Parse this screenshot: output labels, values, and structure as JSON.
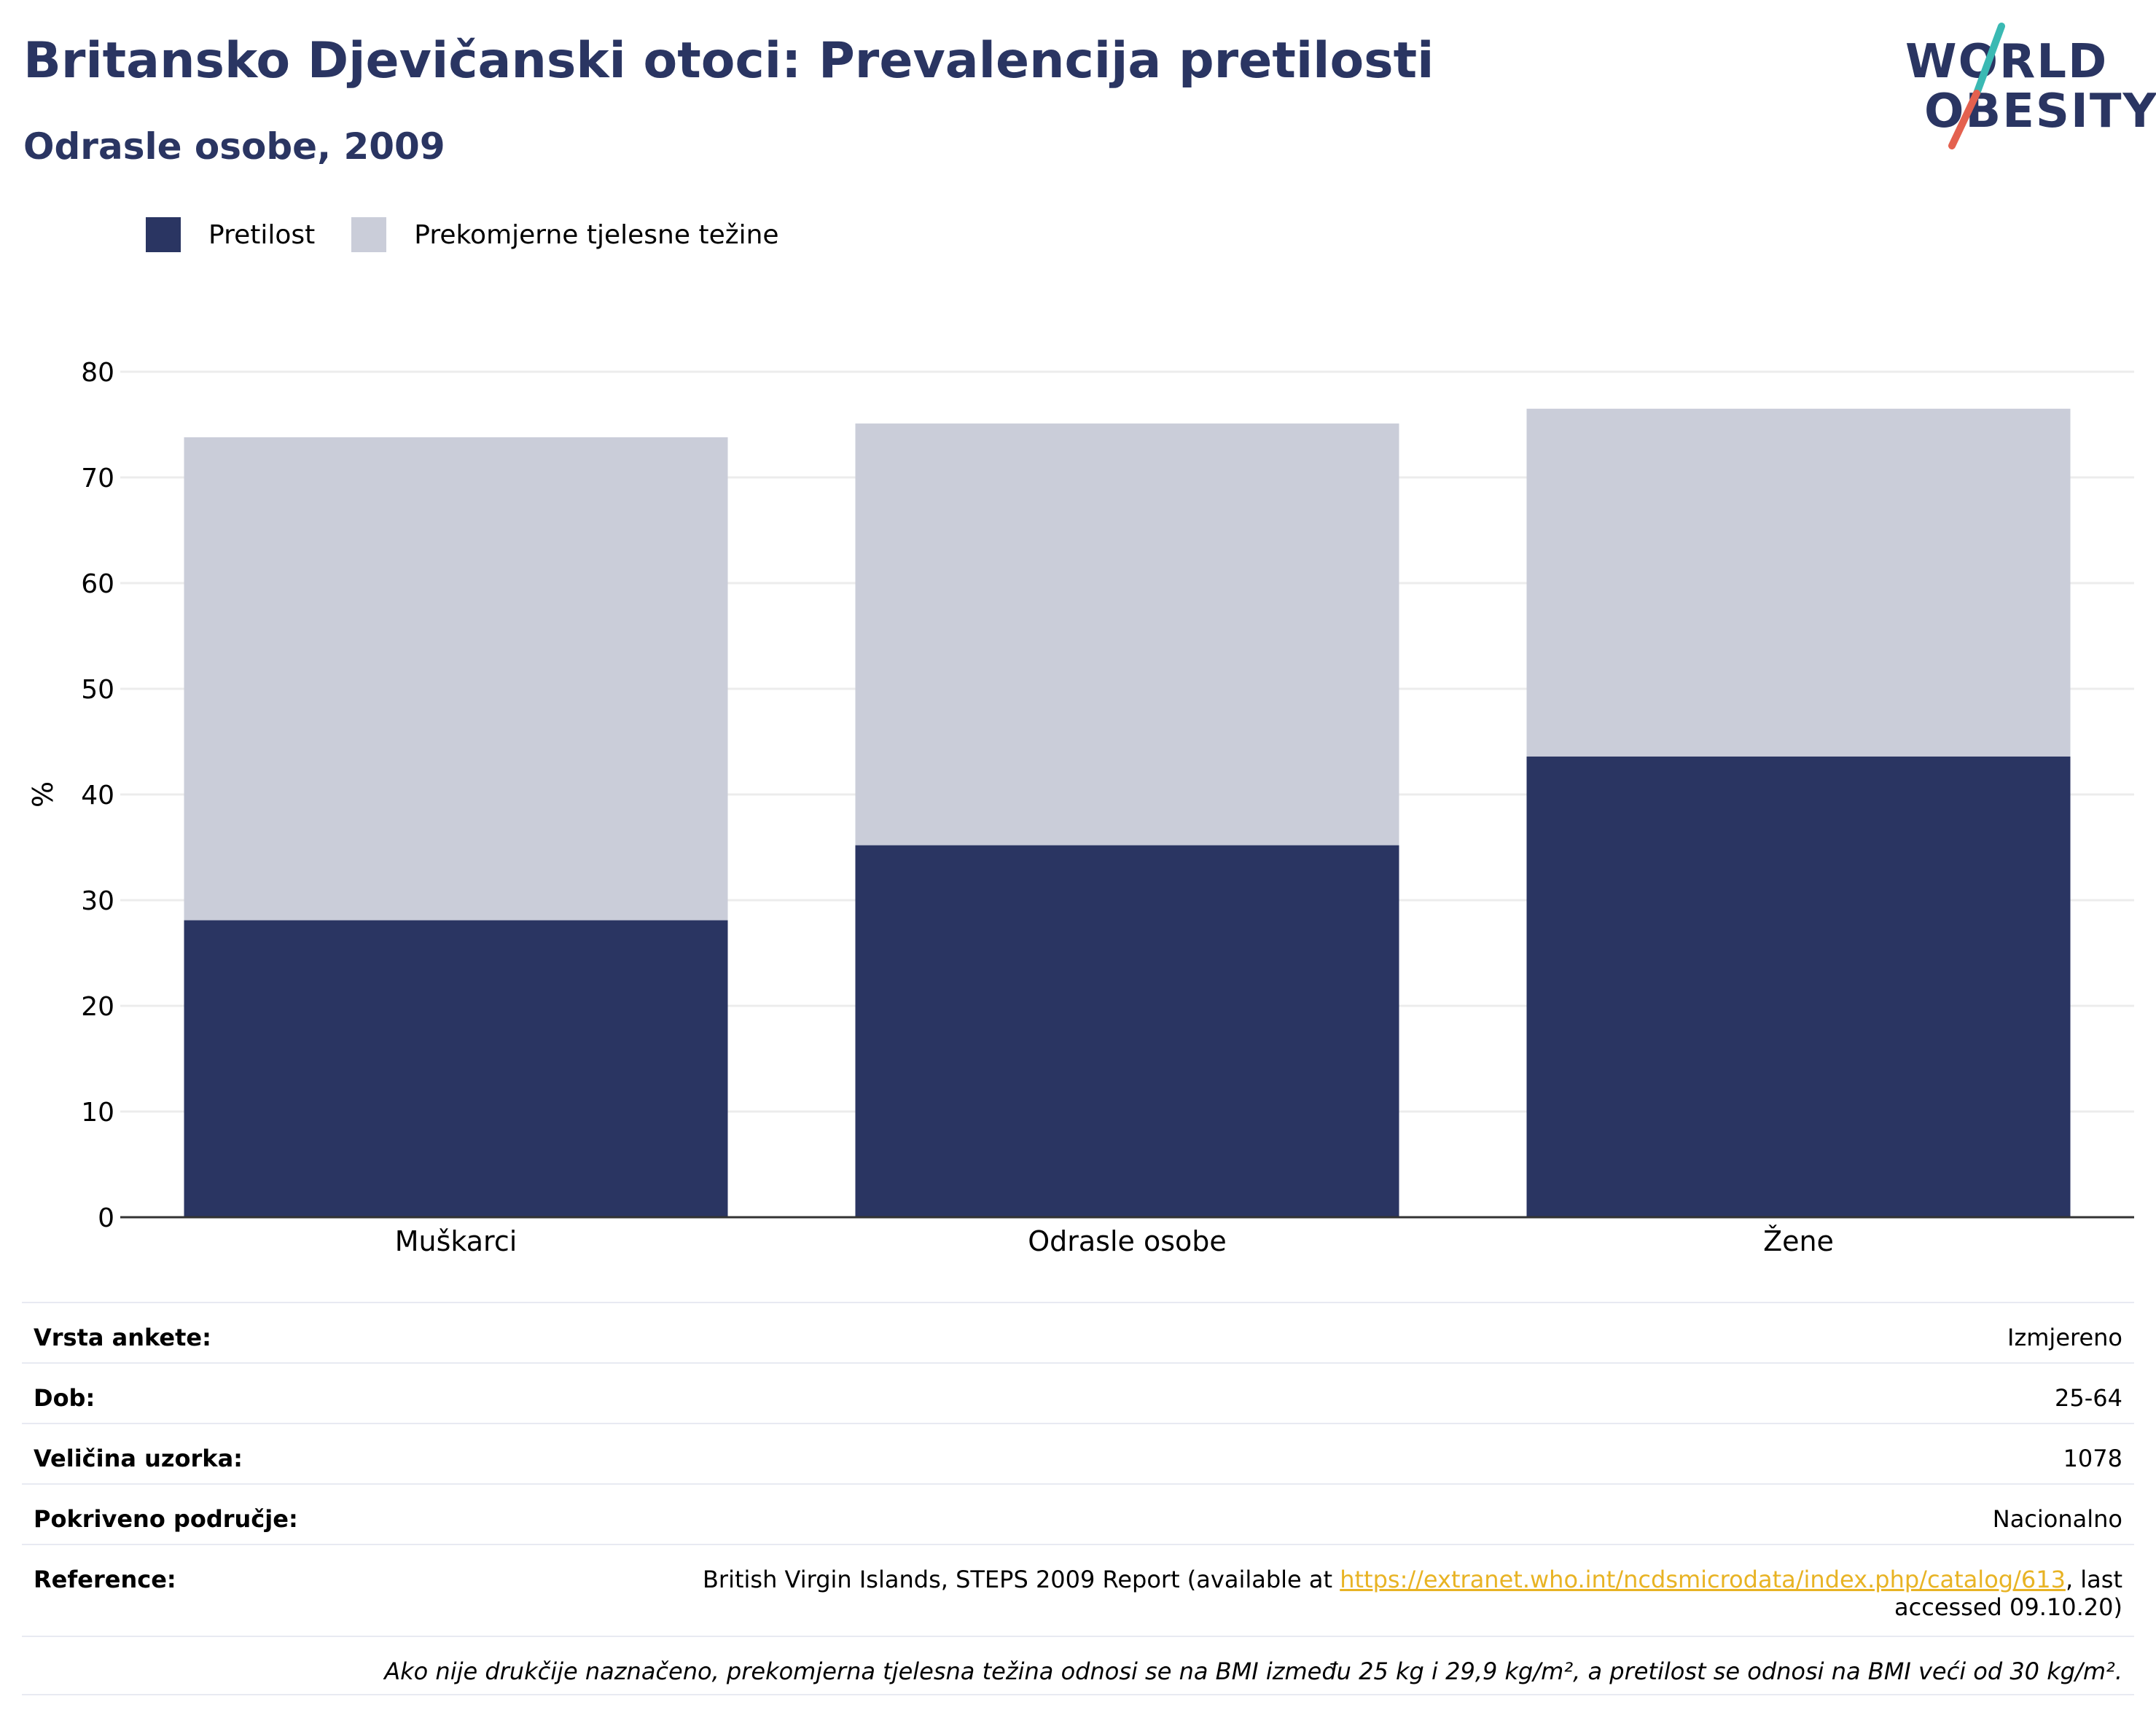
{
  "header": {
    "title": "Britansko Djevičanski otoci: Prevalencija pretilosti",
    "subtitle": "Odrasle osobe, 2009"
  },
  "logo": {
    "line1": "WORLD",
    "line2": "OBESITY",
    "slash_colors": [
      "#3ab9b3",
      "#e4614f"
    ]
  },
  "colors": {
    "obesity": "#2a3562",
    "overweight": "#cacdd9",
    "link": "#e8b324",
    "grid": "#ececec"
  },
  "chart_data": {
    "type": "bar",
    "stacked": true,
    "categories": [
      "Muškarci",
      "Odrasle osobe",
      "Žene"
    ],
    "series": [
      {
        "name": "Pretilost",
        "values": [
          28.1,
          35.2,
          43.6
        ]
      },
      {
        "name": "Prekomjerne tjelesne težine",
        "values": [
          45.7,
          39.9,
          32.9
        ]
      }
    ],
    "ylabel": "%",
    "ylim": [
      0,
      80
    ],
    "yticks": [
      0,
      10,
      20,
      30,
      40,
      50,
      60,
      70,
      80
    ],
    "grid": true,
    "legend": "top-left"
  },
  "info": {
    "rows": [
      {
        "label": "Vrsta ankete:",
        "value": "Izmjereno"
      },
      {
        "label": "Dob:",
        "value": "25-64"
      },
      {
        "label": "Veličina uzorka:",
        "value": "1078"
      },
      {
        "label": "Pokriveno područje:",
        "value": "Nacionalno"
      }
    ],
    "reference": {
      "label": "Reference:",
      "text_before": "British Virgin Islands, STEPS 2009 Report (available at ",
      "link": "https://extranet.who.int/ncdsmicrodata/index.php/catalog/613",
      "text_after": ", last accessed 09.10.20)"
    },
    "note": "Ako nije drukčije naznačeno, prekomjerna tjelesna težina odnosi se na BMI između 25 kg i 29,9 kg/m², a pretilost se odnosi na BMI veći od 30 kg/m²."
  }
}
